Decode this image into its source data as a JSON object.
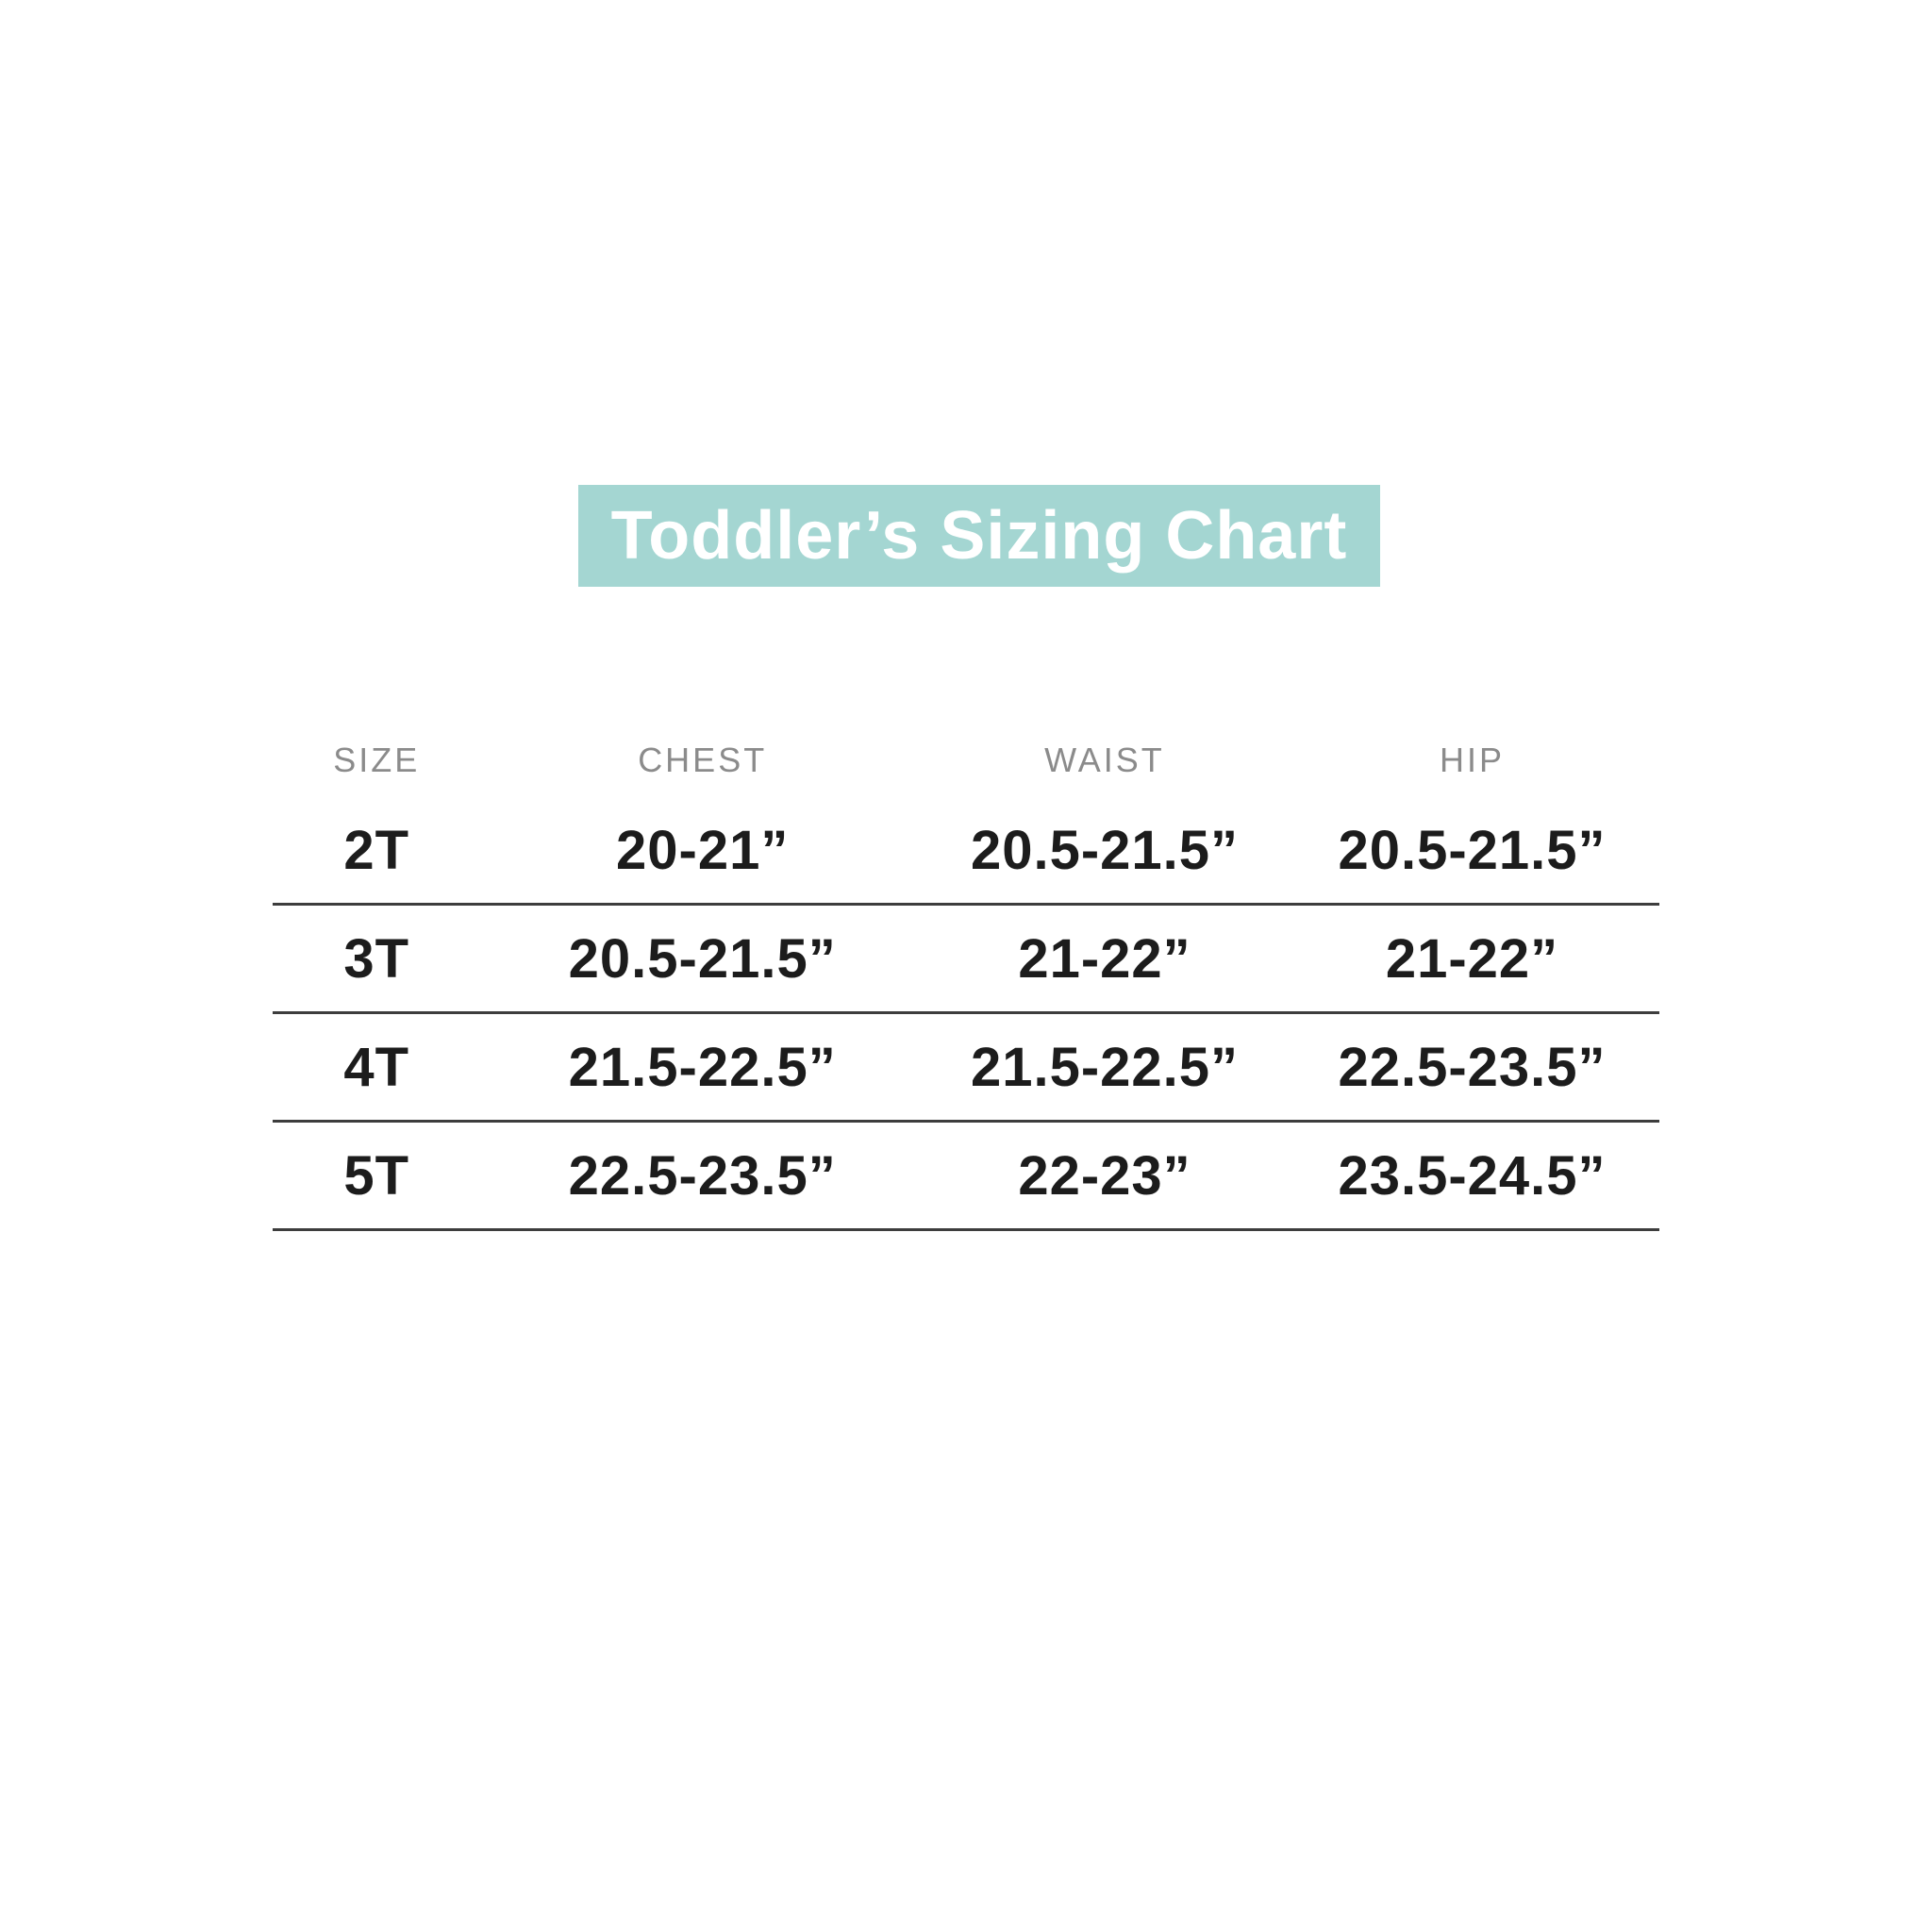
{
  "title_band": {
    "label": "Toddler’s Sizing Chart",
    "background_color": "#a4d6d2",
    "text_color": "#ffffff"
  },
  "table": {
    "headers": [
      "SIZE",
      "CHEST",
      "WAIST",
      "HIP"
    ],
    "rows": [
      [
        "2T",
        "20-21”",
        "20.5-21.5”",
        "20.5-21.5”"
      ],
      [
        "3T",
        "20.5-21.5”",
        "21-22”",
        "21-22”"
      ],
      [
        "4T",
        "21.5-22.5”",
        "21.5-22.5”",
        "22.5-23.5”"
      ],
      [
        "5T",
        "22.5-23.5”",
        "22-23”",
        "23.5-24.5”"
      ]
    ],
    "header_text_color": "#8b8b8b",
    "body_text_color": "#1c1c1c",
    "divider_color": "#3d3d3d"
  },
  "chart_data": {
    "type": "table",
    "title": "Toddler’s Sizing Chart",
    "columns": [
      "SIZE",
      "CHEST",
      "WAIST",
      "HIP"
    ],
    "rows": [
      [
        "2T",
        "20-21”",
        "20.5-21.5”",
        "20.5-21.5”"
      ],
      [
        "3T",
        "20.5-21.5”",
        "21-22”",
        "21-22”"
      ],
      [
        "4T",
        "21.5-22.5”",
        "21.5-22.5”",
        "22.5-23.5”"
      ],
      [
        "5T",
        "22.5-23.5”",
        "22-23”",
        "23.5-24.5”"
      ]
    ],
    "layout_hints": {
      "separator_lines": "below each data row only",
      "header_style": "uppercase gray letter-spaced",
      "title_style": "white bold text on teal band"
    }
  }
}
